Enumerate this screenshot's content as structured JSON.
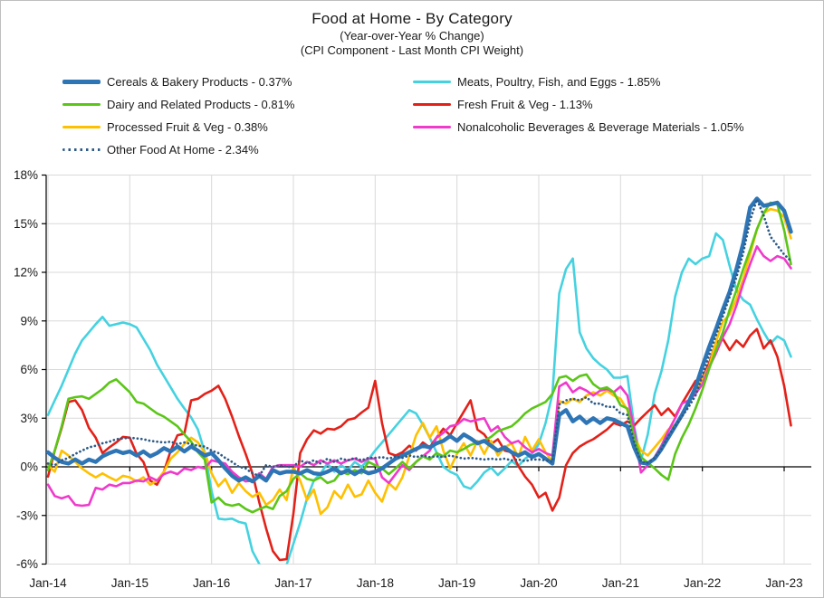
{
  "header": {
    "title": "Food at Home - By Category",
    "subtitle1": "(Year-over-Year % Change)",
    "subtitle2": "(CPI Component - Last Month CPI Weight)"
  },
  "colors": {
    "background": "#FFFFFF",
    "frame_border": "#BFBFBF",
    "grid": "#D9D9D9",
    "axis": "#000000",
    "text": "#1A1A1A"
  },
  "chart_data": {
    "type": "line",
    "title": "Food at Home - By Category",
    "subtitle": "(Year-over-Year % Change) (CPI Component - Last Month CPI Weight)",
    "x_unit": "month",
    "x_range": [
      "Jan-2014",
      "Feb-2023"
    ],
    "points_per_series": 110,
    "x_tick_labels": [
      "Jan-14",
      "Jan-15",
      "Jan-16",
      "Jan-17",
      "Jan-18",
      "Jan-19",
      "Jan-20",
      "Jan-21",
      "Jan-22",
      "Jan-23"
    ],
    "y_tick_labels": [
      "-6%",
      "-3%",
      "0%",
      "3%",
      "6%",
      "9%",
      "12%",
      "15%",
      "18%"
    ],
    "ylim": [
      -6,
      18
    ],
    "y_tick_step": 3,
    "grid": true,
    "legend_position": "top-left, two columns",
    "draw_order": [
      1,
      3,
      4,
      5,
      2,
      0,
      6
    ],
    "series": [
      {
        "id": "cereals-bakery",
        "name": "Cereals & Bakery Products - 0.37%",
        "color": "#2E75B6",
        "style": "solid",
        "line_width": 4.4,
        "values": [
          0.9,
          0.55,
          0.3,
          0.2,
          0.45,
          0.2,
          0.45,
          0.3,
          0.65,
          0.85,
          1.0,
          0.85,
          0.95,
          0.7,
          0.95,
          0.65,
          0.85,
          1.15,
          0.95,
          1.25,
          0.95,
          1.25,
          1.0,
          0.7,
          0.85,
          0.4,
          -0.1,
          -0.55,
          -0.85,
          -0.65,
          -0.9,
          -0.55,
          -0.85,
          -0.2,
          -0.4,
          -0.3,
          -0.3,
          -0.4,
          -0.2,
          -0.4,
          -0.45,
          -0.3,
          -0.1,
          -0.4,
          -0.2,
          -0.45,
          -0.2,
          -0.4,
          -0.3,
          -0.1,
          0.2,
          0.5,
          0.7,
          0.9,
          1.1,
          1.3,
          1.2,
          1.45,
          1.6,
          1.9,
          1.6,
          2.0,
          1.75,
          1.45,
          1.6,
          1.3,
          1.0,
          1.2,
          0.9,
          0.7,
          0.9,
          0.6,
          0.8,
          0.5,
          0.2,
          3.2,
          3.5,
          2.8,
          3.1,
          2.7,
          3.0,
          2.7,
          3.0,
          2.9,
          2.7,
          2.5,
          1.2,
          0.25,
          0.2,
          0.5,
          1.1,
          1.8,
          2.5,
          3.2,
          4.0,
          4.9,
          6.2,
          7.4,
          8.5,
          9.7,
          10.8,
          12.2,
          13.8,
          16.0,
          16.55,
          16.1,
          16.2,
          16.3,
          15.8,
          14.5
        ]
      },
      {
        "id": "meats-poultry-fish-eggs",
        "name": "Meats, Poultry, Fish, and Eggs - 1.85%",
        "color": "#45D2E0",
        "style": "solid",
        "line_width": 2.6,
        "values": [
          3.2,
          4.1,
          5.0,
          6.0,
          7.0,
          7.8,
          8.3,
          8.8,
          9.25,
          8.7,
          8.8,
          8.9,
          8.8,
          8.6,
          7.9,
          7.2,
          6.3,
          5.6,
          4.9,
          4.2,
          3.6,
          3.05,
          2.3,
          0.9,
          -1.5,
          -3.2,
          -3.25,
          -3.2,
          -3.4,
          -3.5,
          -5.2,
          -6.0,
          -6.6,
          -6.8,
          -6.4,
          -6.05,
          -4.75,
          -3.45,
          -1.95,
          -0.85,
          -0.4,
          0.2,
          -0.3,
          0.1,
          -0.2,
          0.3,
          0.0,
          0.45,
          1.0,
          1.5,
          2.0,
          2.5,
          3.0,
          3.5,
          3.3,
          2.6,
          1.8,
          0.9,
          0.0,
          -0.3,
          -0.5,
          -1.2,
          -1.35,
          -0.9,
          -0.35,
          -0.05,
          -0.5,
          -0.1,
          0.35,
          0.05,
          0.5,
          0.8,
          1.4,
          2.7,
          4.5,
          10.7,
          12.2,
          12.85,
          8.3,
          7.3,
          6.7,
          6.3,
          6.0,
          5.5,
          5.5,
          5.6,
          2.5,
          0.4,
          2.0,
          4.5,
          5.9,
          7.8,
          10.5,
          12.0,
          12.85,
          12.5,
          12.85,
          13.0,
          14.4,
          14.0,
          12.4,
          10.9,
          10.3,
          10.0,
          9.1,
          8.3,
          7.6,
          8.05,
          7.8,
          6.8
        ]
      },
      {
        "id": "dairy-related",
        "name": "Dairy and Related Products - 0.81%",
        "color": "#5BC617",
        "style": "solid",
        "line_width": 2.6,
        "values": [
          -0.2,
          1.0,
          2.5,
          4.2,
          4.3,
          4.35,
          4.2,
          4.5,
          4.8,
          5.2,
          5.4,
          5.0,
          4.6,
          4.0,
          3.9,
          3.6,
          3.3,
          3.1,
          2.8,
          2.5,
          2.0,
          1.55,
          0.9,
          0.45,
          -2.2,
          -1.9,
          -2.3,
          -2.4,
          -2.3,
          -2.6,
          -2.8,
          -2.6,
          -2.45,
          -2.6,
          -1.8,
          -1.5,
          -0.75,
          -0.4,
          -0.75,
          -0.85,
          -0.65,
          -1.0,
          -0.85,
          -0.3,
          -0.45,
          -0.2,
          -0.4,
          0.3,
          0.1,
          -0.1,
          -0.45,
          -0.1,
          0.3,
          -0.1,
          0.3,
          0.65,
          0.45,
          0.85,
          0.65,
          1.0,
          0.9,
          1.1,
          1.35,
          1.5,
          1.6,
          1.85,
          2.2,
          2.35,
          2.5,
          2.85,
          3.3,
          3.6,
          3.8,
          4.0,
          4.5,
          5.5,
          5.6,
          5.3,
          5.6,
          5.7,
          5.1,
          4.8,
          4.9,
          4.6,
          3.8,
          3.6,
          1.8,
          0.6,
          0.25,
          -0.1,
          -0.5,
          -0.8,
          0.8,
          1.8,
          2.6,
          3.6,
          4.75,
          6.05,
          7.2,
          8.3,
          9.7,
          10.9,
          12.2,
          13.4,
          14.65,
          15.65,
          16.3,
          16.2,
          14.6,
          12.5
        ]
      },
      {
        "id": "fresh-fruit-veg",
        "name": "Fresh Fruit & Veg - 1.13%",
        "color": "#E32119",
        "style": "solid",
        "line_width": 2.6,
        "values": [
          -0.6,
          1.0,
          2.4,
          4.0,
          4.1,
          3.5,
          2.4,
          1.8,
          0.85,
          1.2,
          1.5,
          1.85,
          1.8,
          0.8,
          0.3,
          -0.85,
          -1.1,
          -0.3,
          1.0,
          1.95,
          2.05,
          4.1,
          4.2,
          4.5,
          4.7,
          5.0,
          4.2,
          3.1,
          1.9,
          0.8,
          -0.4,
          -2.2,
          -3.8,
          -5.2,
          -5.75,
          -5.7,
          -2.9,
          0.85,
          1.7,
          2.25,
          2.05,
          2.35,
          2.3,
          2.5,
          2.9,
          3.0,
          3.35,
          3.65,
          5.3,
          2.7,
          0.85,
          0.7,
          0.9,
          1.3,
          1.0,
          1.5,
          1.2,
          1.8,
          2.35,
          1.95,
          2.7,
          3.4,
          4.1,
          2.3,
          2.0,
          1.4,
          1.7,
          1.0,
          0.9,
          0.05,
          -0.6,
          -1.1,
          -1.9,
          -1.6,
          -2.7,
          -1.9,
          0.1,
          0.85,
          1.25,
          1.5,
          1.7,
          2.0,
          2.3,
          2.7,
          2.55,
          2.8,
          2.55,
          3.0,
          3.4,
          3.8,
          3.2,
          3.6,
          3.1,
          3.9,
          4.6,
          5.3,
          5.5,
          6.4,
          7.65,
          7.9,
          7.2,
          7.8,
          7.4,
          8.1,
          8.5,
          7.3,
          7.8,
          6.8,
          5.0,
          2.55
        ]
      },
      {
        "id": "processed-fruit-veg",
        "name": "Processed Fruit & Veg - 0.38%",
        "color": "#FFC000",
        "style": "solid",
        "line_width": 2.6,
        "values": [
          0.1,
          -0.3,
          1.0,
          0.7,
          0.3,
          -0.1,
          -0.4,
          -0.65,
          -0.4,
          -0.65,
          -0.85,
          -0.55,
          -0.65,
          -0.9,
          -0.65,
          -1.1,
          -0.85,
          -0.3,
          0.5,
          0.9,
          1.4,
          1.8,
          1.5,
          0.9,
          -0.4,
          -1.2,
          -0.75,
          -1.6,
          -1.0,
          -1.5,
          -1.85,
          -1.6,
          -2.35,
          -2.05,
          -1.4,
          -2.05,
          0.0,
          -0.85,
          -2.05,
          -1.4,
          -2.9,
          -2.5,
          -1.5,
          -1.95,
          -1.1,
          -1.85,
          -1.7,
          -0.85,
          -1.6,
          -2.15,
          -1.0,
          -1.4,
          -0.65,
          0.65,
          1.95,
          2.7,
          1.8,
          2.5,
          1.0,
          -0.1,
          0.8,
          1.45,
          0.7,
          1.6,
          0.8,
          1.6,
          0.7,
          1.2,
          1.45,
          0.6,
          1.85,
          1.0,
          1.7,
          0.9,
          0.3,
          4.05,
          3.9,
          4.2,
          4.0,
          4.4,
          4.6,
          4.4,
          4.7,
          4.4,
          4.2,
          3.5,
          1.9,
          1.0,
          0.7,
          1.2,
          1.7,
          2.3,
          2.6,
          3.2,
          4.0,
          4.7,
          5.4,
          6.2,
          7.7,
          8.95,
          9.4,
          10.35,
          11.6,
          13.1,
          14.65,
          15.65,
          15.9,
          15.8,
          15.4,
          14.1
        ]
      },
      {
        "id": "nonalcoholic-beverages",
        "name": "Nonalcoholic Beverages & Beverage Materials - 1.05%",
        "color": "#EF3ACB",
        "style": "solid",
        "line_width": 2.6,
        "values": [
          -1.1,
          -1.8,
          -1.95,
          -1.8,
          -2.35,
          -2.4,
          -2.35,
          -1.3,
          -1.4,
          -1.1,
          -1.2,
          -1.0,
          -1.0,
          -0.85,
          -0.9,
          -0.65,
          -0.85,
          -0.45,
          -0.3,
          -0.45,
          -0.1,
          -0.2,
          0.0,
          -0.1,
          0.4,
          0.3,
          0.2,
          -0.3,
          -0.65,
          -0.9,
          -0.85,
          -0.4,
          -0.75,
          0.0,
          0.1,
          0.1,
          0.1,
          0.0,
          0.3,
          0.1,
          0.4,
          0.2,
          0.4,
          0.2,
          0.4,
          0.5,
          0.3,
          0.5,
          0.5,
          -0.65,
          -1.0,
          -0.45,
          0.1,
          -0.2,
          0.3,
          0.65,
          1.0,
          1.8,
          2.1,
          2.5,
          2.6,
          2.95,
          2.8,
          2.9,
          3.0,
          2.2,
          2.5,
          1.85,
          1.45,
          1.6,
          1.2,
          0.9,
          1.1,
          0.85,
          0.7,
          4.95,
          5.2,
          4.6,
          4.9,
          4.7,
          4.4,
          4.7,
          4.8,
          4.6,
          4.95,
          4.4,
          2.3,
          -0.35,
          0.1,
          0.6,
          1.3,
          2.2,
          3.0,
          3.9,
          4.1,
          4.5,
          5.1,
          6.15,
          7.0,
          8.0,
          8.8,
          9.95,
          11.3,
          12.5,
          13.6,
          13.0,
          12.7,
          13.0,
          12.85,
          12.25
        ]
      },
      {
        "id": "other-food-at-home",
        "name": "Other Food At Home - 2.34%",
        "color": "#2D5A87",
        "style": "dotted",
        "line_width": 2.7,
        "values": [
          0.2,
          0.1,
          0.4,
          0.55,
          0.8,
          1.0,
          1.2,
          1.3,
          1.45,
          1.55,
          1.7,
          1.75,
          1.8,
          1.75,
          1.7,
          1.6,
          1.55,
          1.5,
          1.55,
          1.4,
          1.5,
          1.4,
          1.3,
          1.25,
          1.0,
          0.85,
          0.55,
          0.3,
          0.0,
          -0.1,
          -0.4,
          -0.55,
          0.1,
          0.0,
          0.1,
          0.0,
          0.0,
          0.4,
          0.2,
          0.4,
          0.2,
          0.5,
          0.3,
          0.5,
          0.4,
          0.55,
          0.4,
          0.55,
          0.55,
          0.6,
          0.5,
          0.65,
          0.55,
          0.7,
          0.6,
          0.7,
          0.6,
          0.65,
          0.6,
          0.7,
          0.6,
          0.5,
          0.55,
          0.5,
          0.45,
          0.5,
          0.45,
          0.5,
          0.4,
          0.45,
          0.35,
          0.45,
          0.45,
          0.4,
          0.3,
          3.85,
          4.1,
          4.2,
          4.1,
          4.3,
          3.9,
          3.9,
          3.7,
          3.7,
          3.3,
          3.2,
          1.5,
          0.3,
          0.25,
          0.55,
          1.1,
          1.9,
          2.5,
          3.1,
          3.7,
          4.4,
          5.6,
          6.9,
          8.1,
          9.3,
          10.5,
          11.7,
          13.2,
          15.2,
          16.5,
          15.5,
          14.2,
          13.65,
          13.1,
          12.7
        ]
      }
    ]
  }
}
